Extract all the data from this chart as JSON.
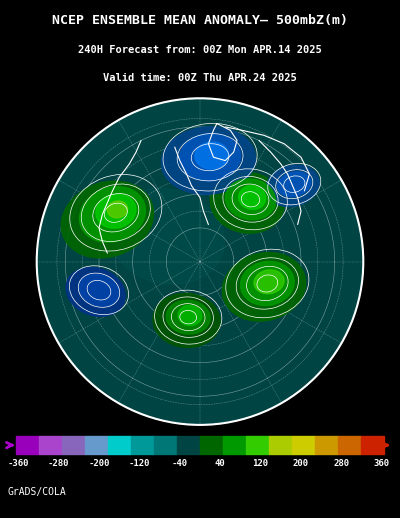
{
  "title_line1": "NCEP ENSEMBLE MEAN ANOMALY– 500mbZ(m)",
  "title_line2": "240H Forecast from: 00Z Mon APR.14 2025",
  "title_line3": "Valid time: 00Z Thu APR.24 2025",
  "footer": "GrADS/COLA",
  "background_color": "#000000",
  "map_bg_color": "#005050",
  "colorbar_values": [
    -360,
    -280,
    -200,
    -120,
    -40,
    40,
    120,
    200,
    280,
    360
  ],
  "colorbar_labels": [
    "-360",
    "-280",
    "-200",
    "-120",
    "-40",
    "40",
    "120",
    "200",
    "280",
    "360"
  ],
  "colorbar_colors": [
    "#9900cc",
    "#cc44cc",
    "#9966cc",
    "#6699cc",
    "#00cccc",
    "#009999",
    "#006666",
    "#006600",
    "#009900",
    "#00cc00",
    "#99cc00",
    "#cccc00",
    "#ccaa00",
    "#cc7700",
    "#cc4400",
    "#cc0000"
  ],
  "anomaly_colors": {
    "strong_neg": "#0000aa",
    "mod_neg": "#0055cc",
    "weak_neg": "#0088ee",
    "neutral_neg": "#006666",
    "neutral_pos": "#006600",
    "weak_pos": "#009900",
    "mod_pos": "#00cc00",
    "strong_pos": "#99cc00"
  }
}
